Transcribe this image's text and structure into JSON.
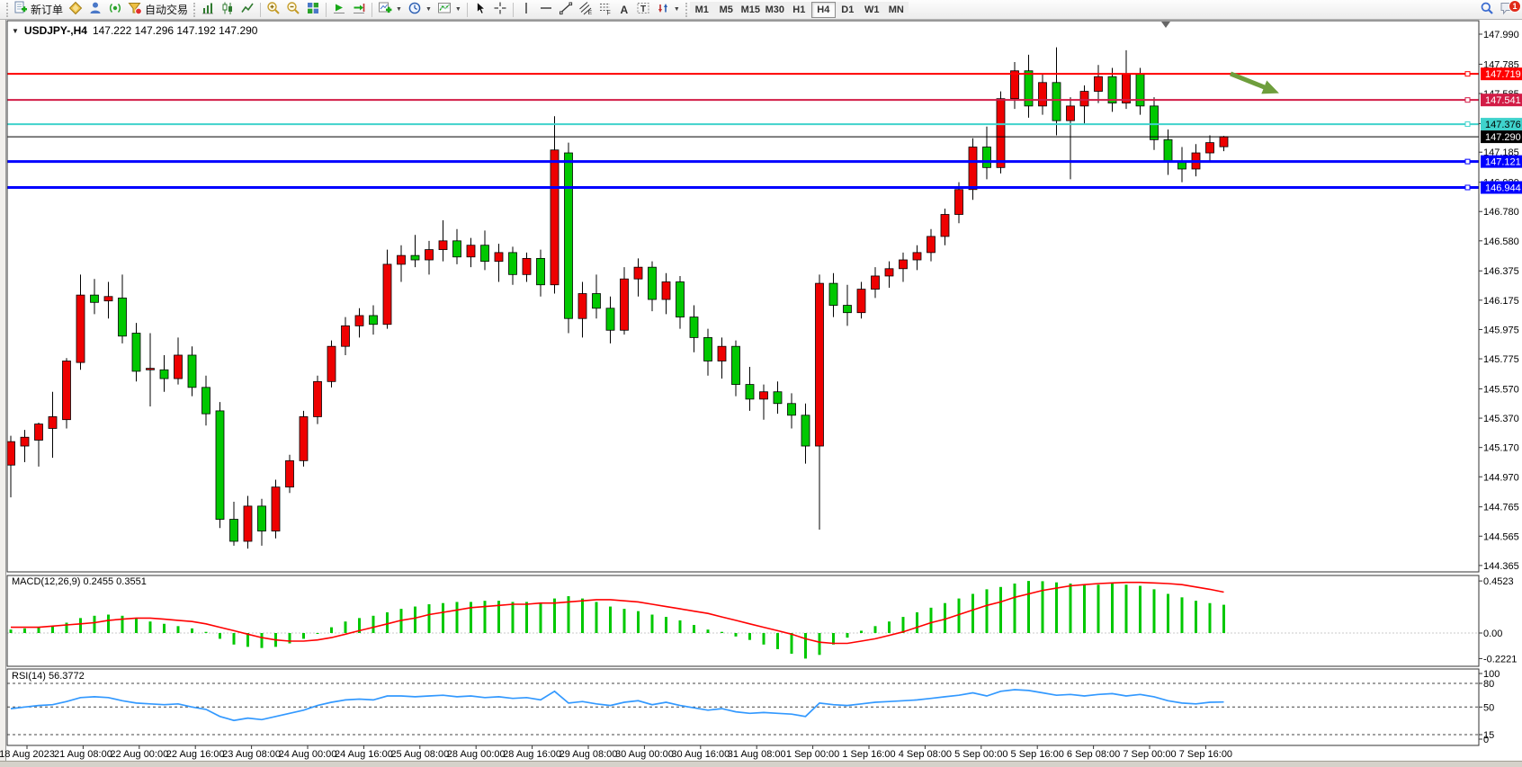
{
  "toolbar": {
    "new_order_label": "新订单",
    "autotrading_label": "自动交易",
    "timeframes": [
      "M1",
      "M5",
      "M15",
      "M30",
      "H1",
      "H4",
      "D1",
      "W1",
      "MN"
    ],
    "active_timeframe": "H4",
    "chat_badge": "1"
  },
  "chart": {
    "symbol_title": "USDJPY-,H4",
    "ohlc_readout": "147.222 147.296 147.192 147.290",
    "price_axis_ticks": [
      "147.990",
      "147.785",
      "147.585",
      "147.380",
      "147.185",
      "146.980",
      "146.780",
      "146.580",
      "146.375",
      "146.175",
      "145.975",
      "145.775",
      "145.570",
      "145.370",
      "145.170",
      "144.970",
      "144.765",
      "144.565",
      "144.365"
    ],
    "time_axis_labels": [
      "18 Aug 2023",
      "21 Aug 08:00",
      "22 Aug 00:00",
      "22 Aug 16:00",
      "23 Aug 08:00",
      "24 Aug 00:00",
      "24 Aug 16:00",
      "25 Aug 08:00",
      "28 Aug 00:00",
      "28 Aug 16:00",
      "29 Aug 08:00",
      "30 Aug 00:00",
      "30 Aug 16:00",
      "31 Aug 08:00",
      "1 Sep 00:00",
      "1 Sep 16:00",
      "4 Sep 08:00",
      "5 Sep 00:00",
      "5 Sep 16:00",
      "6 Sep 08:00",
      "7 Sep 00:00",
      "7 Sep 16:00"
    ],
    "hlines": [
      {
        "price": 147.719,
        "label": "147.719",
        "color": "#ff0000",
        "width": 2,
        "text": "#ffffff"
      },
      {
        "price": 147.541,
        "label": "147.541",
        "color": "#d21c46",
        "width": 2,
        "text": "#ffffff"
      },
      {
        "price": 147.376,
        "label": "147.376",
        "color": "#3fd2cc",
        "width": 2,
        "text": "#000000"
      },
      {
        "price": 147.121,
        "label": "147.121",
        "color": "#0000ff",
        "width": 3,
        "text": "#ffffff"
      },
      {
        "price": 146.944,
        "label": "146.944",
        "color": "#0000ff",
        "width": 3,
        "text": "#ffffff"
      }
    ],
    "current_price": {
      "value": 147.29,
      "label": "147.290",
      "color": "#000000",
      "text": "#ffffff"
    },
    "annotation_arrow": {
      "color": "#6e9e3c"
    },
    "colors": {
      "bull": "#ee0000",
      "bear": "#00c800",
      "wick": "#000000",
      "macd_hist": "#00c800",
      "macd_signal": "#ff0000",
      "rsi_line": "#3399ff"
    },
    "chart_data": {
      "type": "candlestick",
      "symbol": "USDJPY",
      "timeframe": "H4",
      "candles": [
        [
          145.05,
          145.25,
          144.83,
          145.21
        ],
        [
          145.18,
          145.29,
          145.07,
          145.24
        ],
        [
          145.22,
          145.34,
          145.04,
          145.33
        ],
        [
          145.3,
          145.55,
          145.1,
          145.38
        ],
        [
          145.36,
          145.78,
          145.3,
          145.76
        ],
        [
          145.75,
          146.35,
          145.7,
          146.21
        ],
        [
          146.21,
          146.32,
          146.08,
          146.16
        ],
        [
          146.17,
          146.3,
          146.05,
          146.2
        ],
        [
          146.19,
          146.35,
          145.88,
          145.93
        ],
        [
          145.95,
          146.02,
          145.62,
          145.69
        ],
        [
          145.7,
          145.95,
          145.45,
          145.71
        ],
        [
          145.7,
          145.8,
          145.55,
          145.64
        ],
        [
          145.64,
          145.92,
          145.6,
          145.8
        ],
        [
          145.8,
          145.86,
          145.52,
          145.58
        ],
        [
          145.58,
          145.66,
          145.32,
          145.4
        ],
        [
          145.42,
          145.48,
          144.62,
          144.68
        ],
        [
          144.68,
          144.8,
          144.5,
          144.53
        ],
        [
          144.53,
          144.84,
          144.48,
          144.77
        ],
        [
          144.77,
          144.82,
          144.5,
          144.6
        ],
        [
          144.6,
          144.95,
          144.55,
          144.9
        ],
        [
          144.9,
          145.12,
          144.86,
          145.08
        ],
        [
          145.08,
          145.42,
          145.04,
          145.38
        ],
        [
          145.38,
          145.66,
          145.33,
          145.62
        ],
        [
          145.62,
          145.9,
          145.58,
          145.86
        ],
        [
          145.86,
          146.06,
          145.8,
          146.0
        ],
        [
          146.0,
          146.12,
          145.92,
          146.07
        ],
        [
          146.07,
          146.14,
          145.94,
          146.01
        ],
        [
          146.01,
          146.52,
          145.98,
          146.42
        ],
        [
          146.42,
          146.55,
          146.3,
          146.48
        ],
        [
          146.48,
          146.62,
          146.4,
          146.45
        ],
        [
          146.45,
          146.58,
          146.35,
          146.52
        ],
        [
          146.52,
          146.72,
          146.44,
          146.58
        ],
        [
          146.58,
          146.66,
          146.42,
          146.47
        ],
        [
          146.47,
          146.6,
          146.4,
          146.55
        ],
        [
          146.55,
          146.65,
          146.38,
          146.44
        ],
        [
          146.44,
          146.56,
          146.3,
          146.5
        ],
        [
          146.5,
          146.54,
          146.28,
          146.35
        ],
        [
          146.35,
          146.5,
          146.3,
          146.46
        ],
        [
          146.46,
          146.52,
          146.2,
          146.28
        ],
        [
          146.28,
          147.43,
          146.22,
          147.2
        ],
        [
          147.18,
          147.25,
          145.95,
          146.05
        ],
        [
          146.05,
          146.3,
          145.92,
          146.22
        ],
        [
          146.22,
          146.35,
          146.05,
          146.12
        ],
        [
          146.12,
          146.2,
          145.88,
          145.97
        ],
        [
          145.97,
          146.4,
          145.94,
          146.32
        ],
        [
          146.32,
          146.46,
          146.2,
          146.4
        ],
        [
          146.4,
          146.44,
          146.1,
          146.18
        ],
        [
          146.18,
          146.36,
          146.08,
          146.3
        ],
        [
          146.3,
          146.34,
          145.98,
          146.06
        ],
        [
          146.06,
          146.14,
          145.82,
          145.92
        ],
        [
          145.92,
          145.98,
          145.66,
          145.76
        ],
        [
          145.76,
          145.92,
          145.64,
          145.86
        ],
        [
          145.86,
          145.9,
          145.52,
          145.6
        ],
        [
          145.6,
          145.72,
          145.42,
          145.5
        ],
        [
          145.5,
          145.6,
          145.36,
          145.55
        ],
        [
          145.55,
          145.62,
          145.4,
          145.47
        ],
        [
          145.47,
          145.54,
          145.3,
          145.39
        ],
        [
          145.39,
          145.47,
          145.06,
          145.18
        ],
        [
          145.18,
          146.35,
          144.61,
          146.29
        ],
        [
          146.29,
          146.36,
          146.06,
          146.14
        ],
        [
          146.14,
          146.28,
          146.0,
          146.09
        ],
        [
          146.09,
          146.3,
          146.05,
          146.25
        ],
        [
          146.25,
          146.4,
          146.19,
          146.34
        ],
        [
          146.34,
          146.44,
          146.26,
          146.39
        ],
        [
          146.39,
          146.5,
          146.3,
          146.45
        ],
        [
          146.45,
          146.55,
          146.38,
          146.5
        ],
        [
          146.5,
          146.66,
          146.44,
          146.61
        ],
        [
          146.61,
          146.8,
          146.55,
          146.76
        ],
        [
          146.76,
          146.98,
          146.7,
          146.93
        ],
        [
          146.93,
          147.28,
          146.86,
          147.22
        ],
        [
          147.22,
          147.36,
          147.0,
          147.08
        ],
        [
          147.08,
          147.6,
          147.04,
          147.55
        ],
        [
          147.55,
          147.8,
          147.48,
          147.74
        ],
        [
          147.74,
          147.85,
          147.42,
          147.5
        ],
        [
          147.5,
          147.72,
          147.44,
          147.66
        ],
        [
          147.66,
          147.9,
          147.3,
          147.4
        ],
        [
          147.4,
          147.56,
          147.0,
          147.5
        ],
        [
          147.5,
          147.64,
          147.38,
          147.6
        ],
        [
          147.6,
          147.78,
          147.52,
          147.7
        ],
        [
          147.7,
          147.76,
          147.46,
          147.52
        ],
        [
          147.52,
          147.88,
          147.48,
          147.72
        ],
        [
          147.72,
          147.76,
          147.44,
          147.5
        ],
        [
          147.5,
          147.56,
          147.2,
          147.27
        ],
        [
          147.27,
          147.34,
          147.03,
          147.12
        ],
        [
          147.12,
          147.22,
          146.98,
          147.07
        ],
        [
          147.07,
          147.24,
          147.02,
          147.18
        ],
        [
          147.18,
          147.3,
          147.12,
          147.25
        ],
        [
          147.222,
          147.296,
          147.192,
          147.29
        ]
      ],
      "macd": {
        "label": "MACD(12,26,9) 0.2455 0.3551",
        "scale_labels": [
          "0.4523",
          "0.00",
          "-0.2221"
        ],
        "histogram": [
          0.03,
          0.04,
          0.05,
          0.06,
          0.09,
          0.13,
          0.15,
          0.16,
          0.15,
          0.13,
          0.1,
          0.08,
          0.06,
          0.04,
          0.01,
          -0.05,
          -0.1,
          -0.12,
          -0.13,
          -0.12,
          -0.09,
          -0.05,
          0.0,
          0.05,
          0.1,
          0.13,
          0.15,
          0.18,
          0.21,
          0.23,
          0.25,
          0.26,
          0.27,
          0.27,
          0.28,
          0.28,
          0.27,
          0.27,
          0.26,
          0.3,
          0.32,
          0.3,
          0.27,
          0.23,
          0.21,
          0.19,
          0.16,
          0.14,
          0.11,
          0.07,
          0.03,
          0.01,
          -0.03,
          -0.06,
          -0.1,
          -0.14,
          -0.18,
          -0.222,
          -0.19,
          -0.1,
          -0.04,
          0.02,
          0.06,
          0.1,
          0.14,
          0.18,
          0.22,
          0.26,
          0.3,
          0.34,
          0.38,
          0.4,
          0.43,
          0.4523,
          0.45,
          0.44,
          0.43,
          0.42,
          0.42,
          0.43,
          0.42,
          0.41,
          0.38,
          0.34,
          0.31,
          0.28,
          0.26,
          0.2455
        ],
        "signal": [
          0.05,
          0.05,
          0.05,
          0.06,
          0.07,
          0.08,
          0.09,
          0.11,
          0.12,
          0.13,
          0.13,
          0.12,
          0.11,
          0.1,
          0.08,
          0.05,
          0.02,
          -0.01,
          -0.04,
          -0.06,
          -0.07,
          -0.07,
          -0.06,
          -0.04,
          -0.01,
          0.02,
          0.05,
          0.08,
          0.11,
          0.13,
          0.16,
          0.18,
          0.2,
          0.22,
          0.23,
          0.24,
          0.25,
          0.25,
          0.26,
          0.26,
          0.27,
          0.28,
          0.29,
          0.29,
          0.28,
          0.27,
          0.25,
          0.23,
          0.21,
          0.19,
          0.17,
          0.14,
          0.11,
          0.08,
          0.05,
          0.02,
          -0.01,
          -0.05,
          -0.08,
          -0.09,
          -0.09,
          -0.07,
          -0.05,
          -0.02,
          0.01,
          0.05,
          0.09,
          0.12,
          0.16,
          0.2,
          0.24,
          0.27,
          0.31,
          0.34,
          0.37,
          0.39,
          0.41,
          0.42,
          0.43,
          0.435,
          0.44,
          0.44,
          0.435,
          0.43,
          0.42,
          0.4,
          0.38,
          0.3551
        ]
      },
      "rsi": {
        "label": "RSI(14) 56.3772",
        "scale_labels": [
          "100",
          "80",
          "50",
          "15",
          "0"
        ],
        "levels": [
          80,
          50,
          15
        ],
        "values": [
          48,
          50,
          52,
          53,
          57,
          62,
          63,
          62,
          58,
          55,
          54,
          53,
          54,
          50,
          47,
          38,
          33,
          36,
          34,
          38,
          42,
          46,
          52,
          56,
          59,
          60,
          59,
          64,
          64,
          63,
          64,
          65,
          63,
          64,
          62,
          63,
          61,
          62,
          59,
          70,
          55,
          57,
          54,
          52,
          56,
          58,
          53,
          56,
          52,
          49,
          46,
          48,
          44,
          42,
          43,
          42,
          41,
          38,
          55,
          53,
          52,
          54,
          56,
          57,
          58,
          59,
          61,
          63,
          65,
          68,
          64,
          70,
          72,
          71,
          68,
          65,
          66,
          64,
          66,
          67,
          64,
          66,
          63,
          58,
          55,
          54,
          56,
          56.4
        ]
      }
    }
  }
}
